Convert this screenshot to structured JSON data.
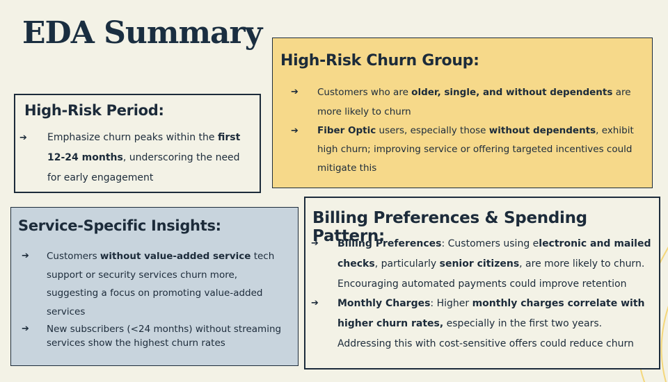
{
  "title": "EDA Summary",
  "high_risk_period": {
    "heading": "High-Risk Period:",
    "item": {
      "t1": "Emphasize churn peaks within the ",
      "b1": "first 12-24 months",
      "t2": ", underscoring the need for early engagement"
    }
  },
  "high_risk_churn": {
    "heading": "High-Risk Churn Group:",
    "item1": {
      "t1": "Customers who are ",
      "b1": "older, single, and without dependents",
      "t2": " are more likely to churn"
    },
    "item2": {
      "b1": "Fiber Optic",
      "t1": " users, especially those ",
      "b2": "without dependents",
      "t2": ", exhibit high churn; improving service or offering targeted incentives could mitigate this"
    }
  },
  "service_insights": {
    "heading": "Service-Specific Insights:",
    "item1": {
      "t1": "Customers ",
      "b1": "without value-added service",
      "t2": " tech support or security services churn more, suggesting a focus on promoting value-added services"
    },
    "item2": {
      "t1": "New subscribers (<24 months) without streaming services show the highest churn rates"
    }
  },
  "billing": {
    "heading": "Billing Preferences & Spending Pattern:",
    "item1": {
      "b1": "Billing Preferences",
      "t1": ": Customers using e",
      "b2": "lectronic and mailed checks",
      "t2": ", particularly ",
      "b3": "senior citizens",
      "t3": ", are more likely to churn. Encouraging automated payments could improve retention"
    },
    "item2": {
      "b1": "Monthly Charges",
      "t1": ": Higher ",
      "b2": "monthly charges correlate with higher churn rates,",
      "t2": " especially in the first two years. Addressing this with cost-sensitive offers could reduce churn"
    }
  },
  "bullet_glyph": "➔",
  "colors": {
    "background": "#f3f2e6",
    "navy": "#1c2b3a",
    "yellow": "#f6d98a",
    "blue_gray": "#c8d4dd",
    "deco_line": "#f4d77a"
  }
}
